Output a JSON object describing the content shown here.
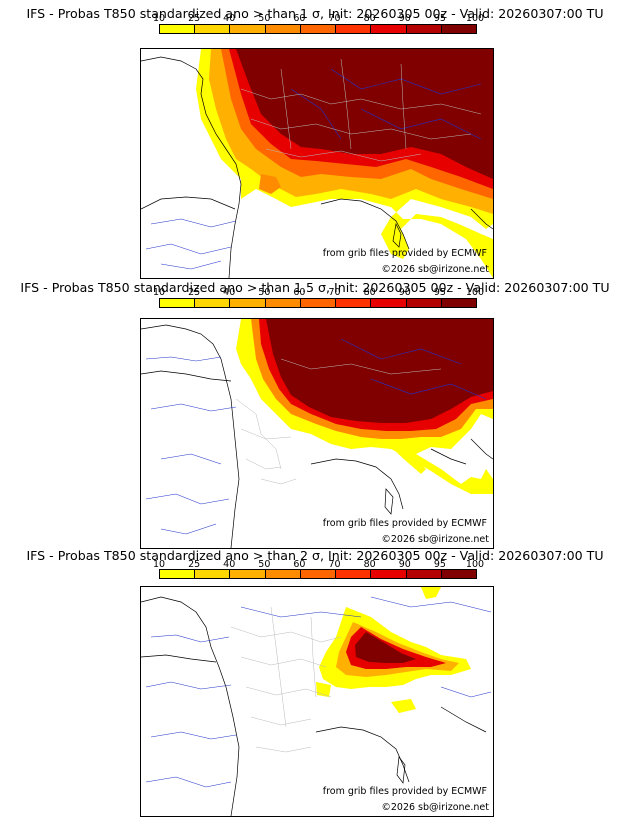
{
  "colorbar": {
    "ticks": [
      "10",
      "25",
      "40",
      "50",
      "60",
      "70",
      "80",
      "90",
      "95",
      "100"
    ],
    "colors": [
      "#ffff00",
      "#ffd700",
      "#ffb000",
      "#ff8c00",
      "#ff6600",
      "#ff3300",
      "#e60000",
      "#b30000",
      "#800000"
    ]
  },
  "panels": [
    {
      "title": "IFS - Probas T850  standardized ano > than 1 σ, Init: 20260305 00z - Valid: 20260307:00 TU",
      "source_note": "from grib files provided by ECMWF",
      "copyright": "©2026 sb@irizone.net"
    },
    {
      "title": "IFS - Probas T850  standardized ano > than 1.5 σ, Init: 20260305 00z - Valid: 20260307:00 TU",
      "source_note": "from grib files provided by ECMWF",
      "copyright": "©2026 sb@irizone.net"
    },
    {
      "title": "IFS - Probas T850  standardized ano > than 2 σ, Init: 20260305 00z - Valid: 20260307:00 TU",
      "source_note": "from grib files provided by ECMWF",
      "copyright": "©2026 sb@irizone.net"
    }
  ]
}
